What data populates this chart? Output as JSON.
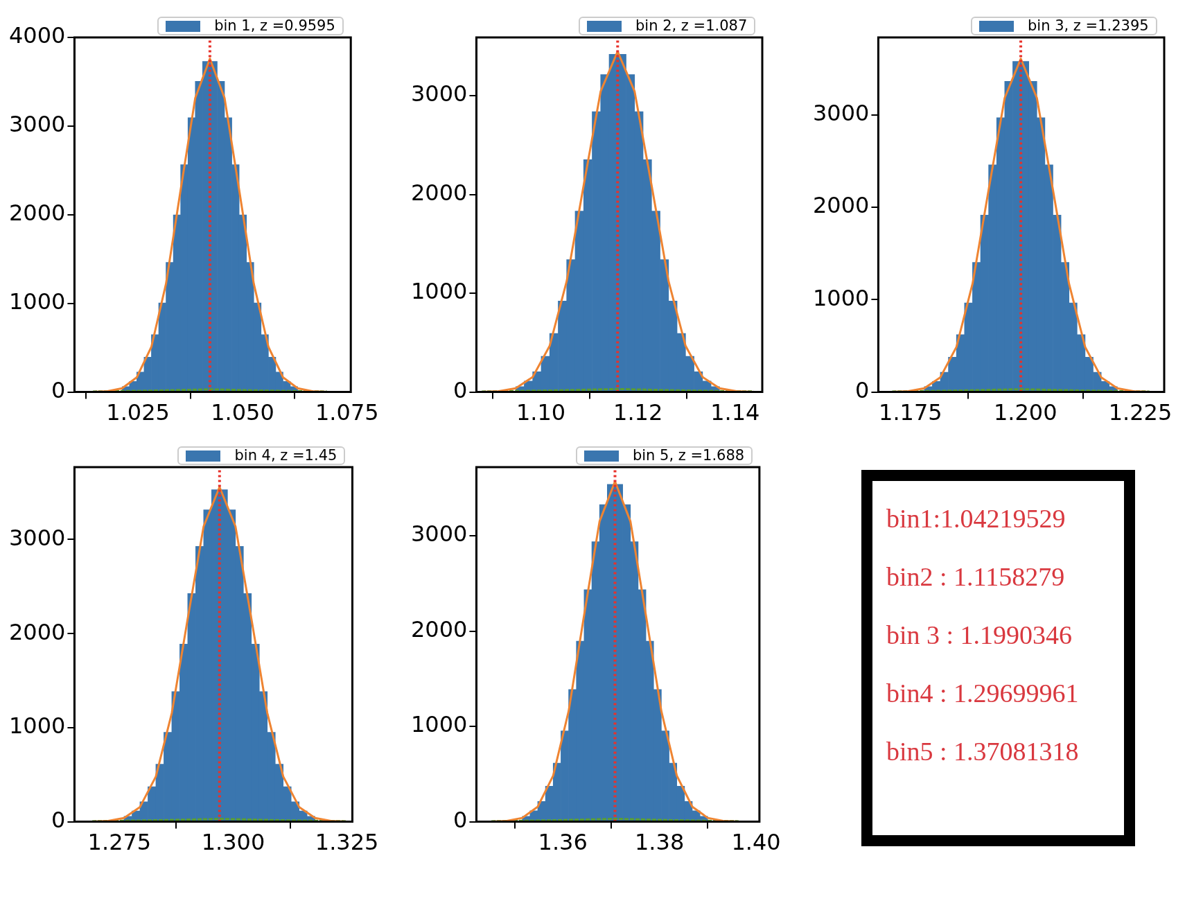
{
  "chart_data": [
    {
      "type": "histogram",
      "bins": [
        1.0212,
        1.02295,
        1.0247,
        1.02645,
        1.0282,
        1.02995,
        1.0317,
        1.03345,
        1.0352,
        1.03695,
        1.0387,
        1.04045,
        1.0422,
        1.04395,
        1.0457,
        1.04745,
        1.0492,
        1.05095,
        1.0527,
        1.05445,
        1.0562,
        1.05795,
        1.0597,
        1.06145,
        1.0632
      ],
      "series": [
        {
          "name": "bin 1, z =0.9595",
          "color": "#3a76af",
          "values": [
            60,
            120,
            224,
            393,
            647,
            1004,
            1463,
            1997,
            2564,
            3094,
            3504,
            3730,
            3730,
            3504,
            3094,
            2564,
            1997,
            1463,
            1004,
            647,
            393,
            224,
            120,
            60
          ]
        },
        {
          "type": "line",
          "color": "#ee8432",
          "x": [
            1.0142,
            1.0177,
            1.0212,
            1.0247,
            1.0282,
            1.0317,
            1.0352,
            1.0387,
            1.0422,
            1.0457,
            1.0492,
            1.0527,
            1.0562,
            1.0597,
            1.0632,
            1.0667,
            1.0702
          ],
          "values": [
            1,
            8,
            42,
            165,
            509,
            1221,
            2280,
            3318,
            3760,
            3318,
            2280,
            1221,
            509,
            165,
            42,
            8,
            1
          ]
        },
        {
          "type": "line",
          "color": "#5a9e2f",
          "line_style": "dashed",
          "x": [
            1.0142,
            1.0282,
            1.0422,
            1.0562,
            1.0702
          ],
          "values": [
            5,
            15,
            30,
            15,
            5
          ]
        }
      ],
      "xlim": [
        1.0098,
        1.0759
      ],
      "xticks": [
        1.025,
        {
          "value": 1.05,
          "label": "1.050"
        },
        1.075
      ],
      "ylim": [
        0,
        4000
      ],
      "yticks": [
        0,
        1000,
        2000,
        3000,
        4000
      ],
      "ref_lines": [
        {
          "axis": "x",
          "value": 1.0422,
          "color": "#e8312a",
          "line_style": "dotted"
        }
      ],
      "legend": "top right"
    },
    {
      "type": "histogram",
      "bins": [
        1.0948,
        1.09655,
        1.0983,
        1.10005,
        1.1018,
        1.10355,
        1.1053,
        1.10705,
        1.1088,
        1.11055,
        1.1123,
        1.11405,
        1.1158,
        1.11755,
        1.1193,
        1.12105,
        1.1228,
        1.12455,
        1.1263,
        1.12805,
        1.1298,
        1.13155,
        1.1333,
        1.13505,
        1.1368
      ],
      "series": [
        {
          "name": "bin 2, z =1.087",
          "color": "#3a76af",
          "values": [
            55,
            110,
            206,
            361,
            593,
            921,
            1341,
            1831,
            2352,
            2838,
            3214,
            3420,
            3420,
            3214,
            2838,
            2352,
            1831,
            1341,
            921,
            593,
            361,
            206,
            110,
            55
          ]
        },
        {
          "type": "line",
          "color": "#ee8432",
          "x": [
            1.0878,
            1.0913,
            1.0948,
            1.0983,
            1.1018,
            1.1053,
            1.1088,
            1.1123,
            1.1158,
            1.1193,
            1.1228,
            1.1263,
            1.1298,
            1.1333,
            1.1368,
            1.1403,
            1.1438
          ],
          "values": [
            1,
            8,
            38,
            151,
            467,
            1120,
            2091,
            3043,
            3448,
            3043,
            2091,
            1120,
            467,
            151,
            38,
            8,
            1
          ]
        },
        {
          "type": "line",
          "color": "#5a9e2f",
          "line_style": "dashed",
          "x": [
            1.0878,
            1.1018,
            1.1158,
            1.1298,
            1.1438
          ],
          "values": [
            5,
            15,
            30,
            15,
            5
          ]
        }
      ],
      "xlim": [
        1.0867,
        1.1456
      ],
      "xticks": [
        {
          "value": 1.1,
          "label": "1.10"
        },
        1.12,
        1.14
      ],
      "ylim": [
        0,
        3590
      ],
      "yticks": [
        0,
        1000,
        2000,
        3000
      ],
      "ref_lines": [
        {
          "axis": "x",
          "value": 1.1158,
          "color": "#e8312a",
          "line_style": "dotted"
        }
      ],
      "legend": "top right"
    },
    {
      "type": "histogram",
      "bins": [
        1.178,
        1.17975,
        1.1815,
        1.18325,
        1.185,
        1.18675,
        1.1885,
        1.19025,
        1.192,
        1.19375,
        1.1955,
        1.19725,
        1.199,
        1.20075,
        1.2025,
        1.20425,
        1.206,
        1.20775,
        1.2095,
        1.21125,
        1.213,
        1.21475,
        1.2165,
        1.21825,
        1.22
      ],
      "series": [
        {
          "name": "bin 3, z =1.2395",
          "color": "#3a76af",
          "values": [
            58,
            115,
            215,
            378,
            621,
            964,
            1404,
            1916,
            2461,
            2970,
            3364,
            3580,
            3580,
            3364,
            2970,
            2461,
            1916,
            1404,
            964,
            621,
            378,
            215,
            115,
            58
          ]
        },
        {
          "type": "line",
          "color": "#ee8432",
          "x": [
            1.171,
            1.1745,
            1.178,
            1.1815,
            1.185,
            1.1885,
            1.192,
            1.1955,
            1.199,
            1.2025,
            1.206,
            1.2095,
            1.213,
            1.2165,
            1.22,
            1.2235,
            1.227
          ],
          "values": [
            1,
            8,
            40,
            159,
            488,
            1172,
            2189,
            3185,
            3609,
            3185,
            2189,
            1172,
            488,
            159,
            40,
            8,
            1
          ]
        },
        {
          "type": "line",
          "color": "#5a9e2f",
          "line_style": "dashed",
          "x": [
            1.171,
            1.185,
            1.199,
            1.213,
            1.227
          ],
          "values": [
            5,
            15,
            30,
            15,
            5
          ]
        }
      ],
      "xlim": [
        1.168,
        1.2302
      ],
      "xticks": [
        1.175,
        {
          "value": 1.2,
          "label": "1.200"
        },
        1.225
      ],
      "ylim": [
        0,
        3840
      ],
      "yticks": [
        0,
        1000,
        2000,
        3000
      ],
      "ref_lines": [
        {
          "axis": "x",
          "value": 1.199,
          "color": "#e8312a",
          "line_style": "dotted"
        }
      ],
      "legend": "top right"
    },
    {
      "type": "histogram",
      "bins": [
        1.276,
        1.27775,
        1.2795,
        1.28125,
        1.283,
        1.28475,
        1.2865,
        1.28825,
        1.29,
        1.29175,
        1.2935,
        1.29525,
        1.297,
        1.29875,
        1.3005,
        1.30225,
        1.304,
        1.30575,
        1.3075,
        1.30925,
        1.311,
        1.31275,
        1.3145,
        1.31625,
        1.318
      ],
      "series": [
        {
          "name": "bin 4, z =1.45",
          "color": "#3a76af",
          "values": [
            57,
            114,
            212,
            372,
            612,
            950,
            1384,
            1889,
            2427,
            2928,
            3316,
            3530,
            3530,
            3316,
            2928,
            2427,
            1889,
            1384,
            950,
            612,
            372,
            212,
            114,
            57
          ]
        },
        {
          "type": "line",
          "color": "#ee8432",
          "x": [
            1.269,
            1.2725,
            1.276,
            1.2795,
            1.283,
            1.2865,
            1.29,
            1.2935,
            1.297,
            1.3005,
            1.304,
            1.3075,
            1.311,
            1.3145,
            1.318,
            1.3215,
            1.325
          ],
          "values": [
            1,
            8,
            39,
            156,
            481,
            1155,
            2158,
            3140,
            3558,
            3140,
            2158,
            1155,
            481,
            156,
            39,
            8,
            1
          ]
        },
        {
          "type": "line",
          "color": "#5a9e2f",
          "line_style": "dashed",
          "x": [
            1.269,
            1.283,
            1.297,
            1.311,
            1.325
          ],
          "values": [
            5,
            15,
            30,
            15,
            5
          ]
        }
      ],
      "xlim": [
        1.2651,
        1.3262
      ],
      "xticks": [
        1.275,
        {
          "value": 1.3,
          "label": "1.300"
        },
        1.325
      ],
      "ylim": [
        0,
        3770
      ],
      "yticks": [
        0,
        1000,
        2000,
        3000
      ],
      "ref_lines": [
        {
          "axis": "x",
          "value": 1.297,
          "color": "#e8312a",
          "line_style": "dotted"
        }
      ],
      "legend": "top right"
    },
    {
      "type": "histogram",
      "bins": [
        1.3516,
        1.3532,
        1.3548,
        1.3564,
        1.358,
        1.3596,
        1.3612,
        1.3628,
        1.3644,
        1.366,
        1.3676,
        1.3692,
        1.3708,
        1.3724,
        1.374,
        1.3756,
        1.3772,
        1.3788,
        1.3804,
        1.382,
        1.3836,
        1.3852,
        1.3868,
        1.3884,
        1.39
      ],
      "series": [
        {
          "name": "bin 5, z =1.688",
          "color": "#3a76af",
          "values": [
            57,
            114,
            213,
            373,
            614,
            953,
            1388,
            1895,
            2434,
            2937,
            3326,
            3540,
            3540,
            3326,
            2937,
            2434,
            1895,
            1388,
            953,
            614,
            373,
            213,
            114,
            57
          ]
        },
        {
          "type": "line",
          "color": "#ee8432",
          "x": [
            1.3452,
            1.3484,
            1.3516,
            1.3548,
            1.358,
            1.3612,
            1.3644,
            1.3676,
            1.3708,
            1.374,
            1.3772,
            1.3804,
            1.3836,
            1.3868,
            1.39,
            1.3932,
            1.3964
          ],
          "values": [
            1,
            8,
            40,
            157,
            483,
            1159,
            2165,
            3150,
            3569,
            3150,
            2165,
            1159,
            483,
            157,
            40,
            8,
            1
          ]
        },
        {
          "type": "line",
          "color": "#5a9e2f",
          "line_style": "dashed",
          "x": [
            1.3452,
            1.358,
            1.3708,
            1.3836,
            1.3964
          ],
          "values": [
            5,
            15,
            30,
            15,
            5
          ]
        }
      ],
      "xlim": [
        1.3421,
        1.4007
      ],
      "xticks": [
        1.36,
        1.38,
        {
          "value": 1.4,
          "label": "1.40"
        }
      ],
      "ylim": [
        0,
        3720
      ],
      "yticks": [
        0,
        1000,
        2000,
        3000
      ],
      "ref_lines": [
        {
          "axis": "x",
          "value": 1.3708,
          "color": "#e8312a",
          "line_style": "dotted"
        }
      ],
      "legend": "top right"
    },
    {
      "type": "other",
      "annotations": [
        "bin1:1.04219529",
        "bin2 : 1.1158279",
        "bin 3 : 1.1990346",
        "bin4 : 1.29699961",
        "bin5 : 1.37081318"
      ]
    }
  ]
}
